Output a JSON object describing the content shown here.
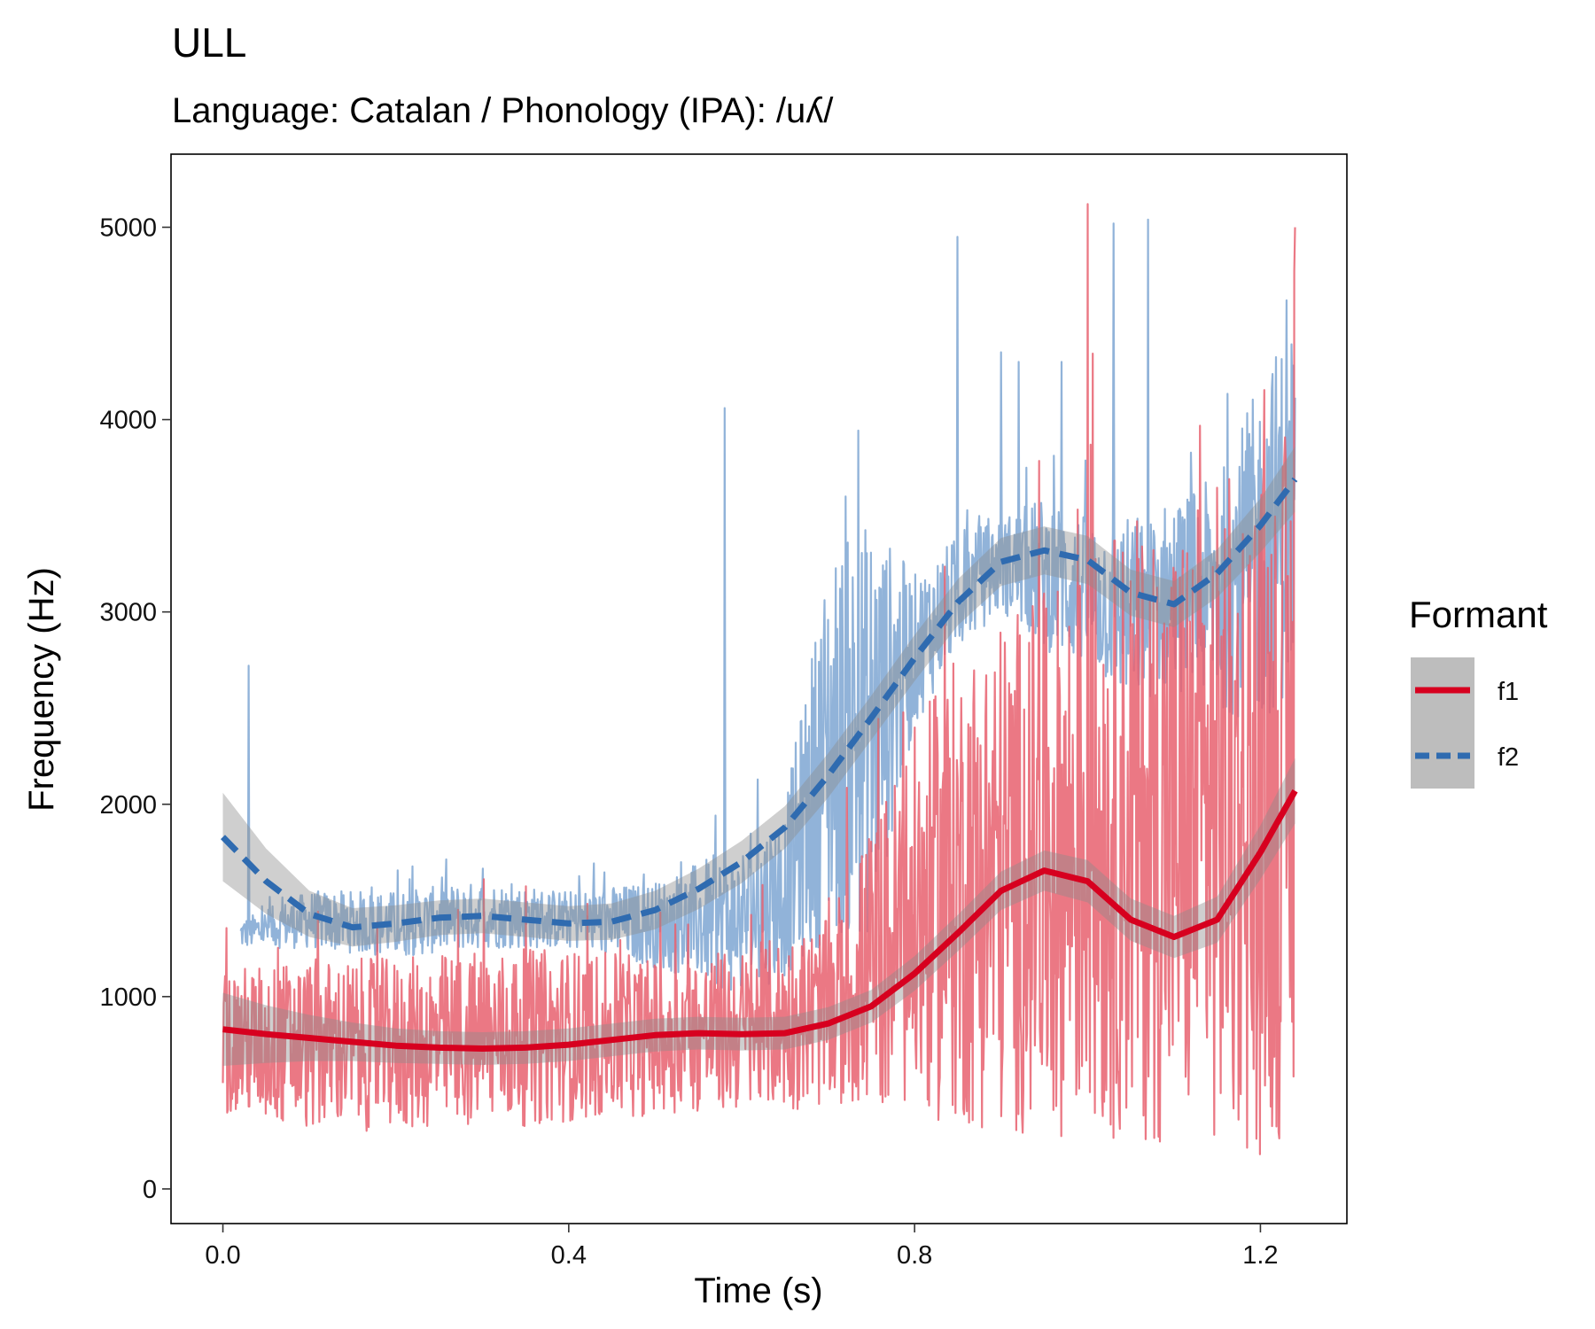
{
  "chart_data": {
    "type": "line",
    "title": "ULL",
    "subtitle": "Language: Catalan / Phonology (IPA): /uʎ/",
    "xlabel": "Time (s)",
    "ylabel": "Frequency (Hz)",
    "xlim": [
      -0.06,
      1.3
    ],
    "ylim": [
      -180,
      5380
    ],
    "x_ticks": [
      0.0,
      0.4,
      0.8,
      1.2
    ],
    "x_tick_labels": [
      "0.0",
      "0.4",
      "0.8",
      "1.2"
    ],
    "y_ticks": [
      0,
      1000,
      2000,
      3000,
      4000,
      5000
    ],
    "y_tick_labels": [
      "0",
      "1000",
      "2000",
      "3000",
      "4000",
      "5000"
    ],
    "grid": false,
    "legend": {
      "title": "Formant",
      "placement": "right",
      "entries": [
        {
          "label": "f1",
          "color": "#d7001f",
          "dash": "solid"
        },
        {
          "label": "f2",
          "color": "#2f6bb0",
          "dash": "dashed"
        }
      ]
    },
    "series": [
      {
        "name": "f1",
        "color": "#d7001f",
        "raw_color": "#e8606f",
        "smooth": {
          "x": [
            0.0,
            0.05,
            0.1,
            0.15,
            0.2,
            0.25,
            0.3,
            0.35,
            0.4,
            0.45,
            0.5,
            0.55,
            0.6,
            0.65,
            0.7,
            0.75,
            0.8,
            0.85,
            0.9,
            0.95,
            1.0,
            1.05,
            1.1,
            1.15,
            1.2,
            1.24
          ],
          "y": [
            830,
            805,
            785,
            765,
            745,
            735,
            730,
            735,
            750,
            775,
            800,
            810,
            805,
            810,
            860,
            950,
            1120,
            1330,
            1550,
            1655,
            1600,
            1400,
            1310,
            1400,
            1750,
            2070
          ],
          "se": [
            190,
            150,
            120,
            100,
            90,
            85,
            85,
            85,
            85,
            85,
            85,
            85,
            85,
            85,
            85,
            85,
            90,
            95,
            100,
            105,
            110,
            110,
            110,
            120,
            140,
            170
          ]
        },
        "raw_bands": {
          "x": [
            0.0,
            0.1,
            0.2,
            0.3,
            0.4,
            0.5,
            0.6,
            0.7,
            0.8,
            0.85,
            0.9,
            0.95,
            1.0,
            1.05,
            1.1,
            1.15,
            1.2,
            1.24
          ],
          "low": [
            380,
            300,
            300,
            300,
            350,
            380,
            400,
            420,
            380,
            320,
            280,
            280,
            260,
            250,
            220,
            200,
            150,
            300
          ],
          "high": [
            1150,
            1200,
            1200,
            1250,
            1250,
            1200,
            1250,
            1400,
            2400,
            2800,
            3000,
            3100,
            3300,
            3500,
            3500,
            3700,
            3800,
            4000
          ],
          "peak_x": [
            1.0,
            1.24
          ],
          "peak_y": [
            5120,
            5000
          ]
        }
      },
      {
        "name": "f2",
        "color": "#2f6bb0",
        "raw_color": "#7ea6d2",
        "smooth": {
          "x": [
            0.0,
            0.05,
            0.1,
            0.15,
            0.2,
            0.25,
            0.3,
            0.35,
            0.4,
            0.45,
            0.5,
            0.55,
            0.6,
            0.65,
            0.7,
            0.75,
            0.8,
            0.85,
            0.9,
            0.95,
            1.0,
            1.05,
            1.1,
            1.15,
            1.2,
            1.24
          ],
          "y": [
            1830,
            1600,
            1430,
            1360,
            1380,
            1410,
            1420,
            1400,
            1380,
            1390,
            1450,
            1560,
            1700,
            1880,
            2150,
            2450,
            2760,
            3050,
            3260,
            3320,
            3270,
            3100,
            3040,
            3200,
            3450,
            3690
          ],
          "se": [
            230,
            170,
            120,
            100,
            95,
            90,
            90,
            90,
            90,
            95,
            100,
            105,
            110,
            110,
            115,
            115,
            120,
            120,
            125,
            125,
            125,
            120,
            120,
            125,
            140,
            170
          ]
        },
        "raw_bands": {
          "x": [
            0.02,
            0.1,
            0.2,
            0.3,
            0.4,
            0.5,
            0.6,
            0.65,
            0.7,
            0.75,
            0.8,
            0.85,
            0.9,
            0.95,
            1.0,
            1.05,
            1.1,
            1.15,
            1.2,
            1.24
          ],
          "low": [
            1250,
            1250,
            1200,
            1250,
            1250,
            1150,
            1000,
            1100,
            1300,
            1300,
            2400,
            2800,
            3000,
            2800,
            2700,
            2500,
            2600,
            2500,
            2400,
            2600
          ],
          "high": [
            1400,
            1550,
            1550,
            1600,
            1550,
            1600,
            1800,
            2000,
            3300,
            3500,
            3200,
            3400,
            3500,
            3600,
            3500,
            3500,
            3600,
            3700,
            4200,
            4600
          ],
          "peak_x": [
            0.03,
            0.58,
            0.72,
            0.85,
            0.9,
            0.92,
            0.97,
            1.03,
            1.07,
            1.23
          ],
          "peak_y": [
            2720,
            4060,
            3600,
            4950,
            4350,
            4300,
            4300,
            5020,
            5040,
            4620
          ]
        }
      }
    ]
  }
}
